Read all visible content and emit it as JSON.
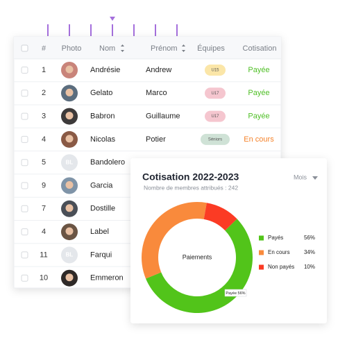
{
  "table": {
    "columns": [
      "#",
      "Photo",
      "Nom",
      "Prénom",
      "Équipes",
      "Cotisation"
    ],
    "rows": [
      {
        "number": 1,
        "name": "Andrésie",
        "first_name": "Andrew",
        "team": {
          "text": "U15",
          "color": "#fbe6a8"
        },
        "status": {
          "text": "Payée",
          "color": "#4fbf26"
        }
      },
      {
        "number": 2,
        "name": "Gelato",
        "first_name": "Marco",
        "team": {
          "text": "U17",
          "color": "#f5c6cf"
        },
        "status": {
          "text": "Payée",
          "color": "#4fbf26"
        }
      },
      {
        "number": 3,
        "name": "Babron",
        "first_name": "Guillaume",
        "team": {
          "text": "U17",
          "color": "#f5c6cf"
        },
        "status": {
          "text": "Payée",
          "color": "#4fbf26"
        }
      },
      {
        "number": 4,
        "name": "Nicolas",
        "first_name": "Potier",
        "team": {
          "text": "Séniors",
          "color": "#cfe2d6"
        },
        "status": {
          "text": "En cours",
          "color": "#f5832b"
        }
      },
      {
        "number": 5,
        "name": "Bandolero",
        "photo": "BL"
      },
      {
        "number": 9,
        "name": "Garcia"
      },
      {
        "number": 7,
        "name": "Dostille"
      },
      {
        "number": 4,
        "name": "Label"
      },
      {
        "number": 11,
        "name": "Farqui",
        "photo": "BL"
      },
      {
        "number": 10,
        "name": "Emmeron"
      }
    ]
  },
  "card": {
    "title": "Cotisation 2022-2023",
    "subtitle": "Nombre de membres attribués : 242",
    "dropdown": "Mois",
    "center_label": "Paiements",
    "tooltip": "Payée 56%",
    "segments": [
      {
        "name": "Payés",
        "value": 56,
        "value_label": "56%",
        "color": "#52c41a"
      },
      {
        "name": "En cours",
        "value": 34,
        "value_label": "34%",
        "color": "#f98a3c"
      },
      {
        "name": "Non payés",
        "value": 10,
        "value_label": "10%",
        "color": "#fb3b24"
      }
    ]
  }
}
